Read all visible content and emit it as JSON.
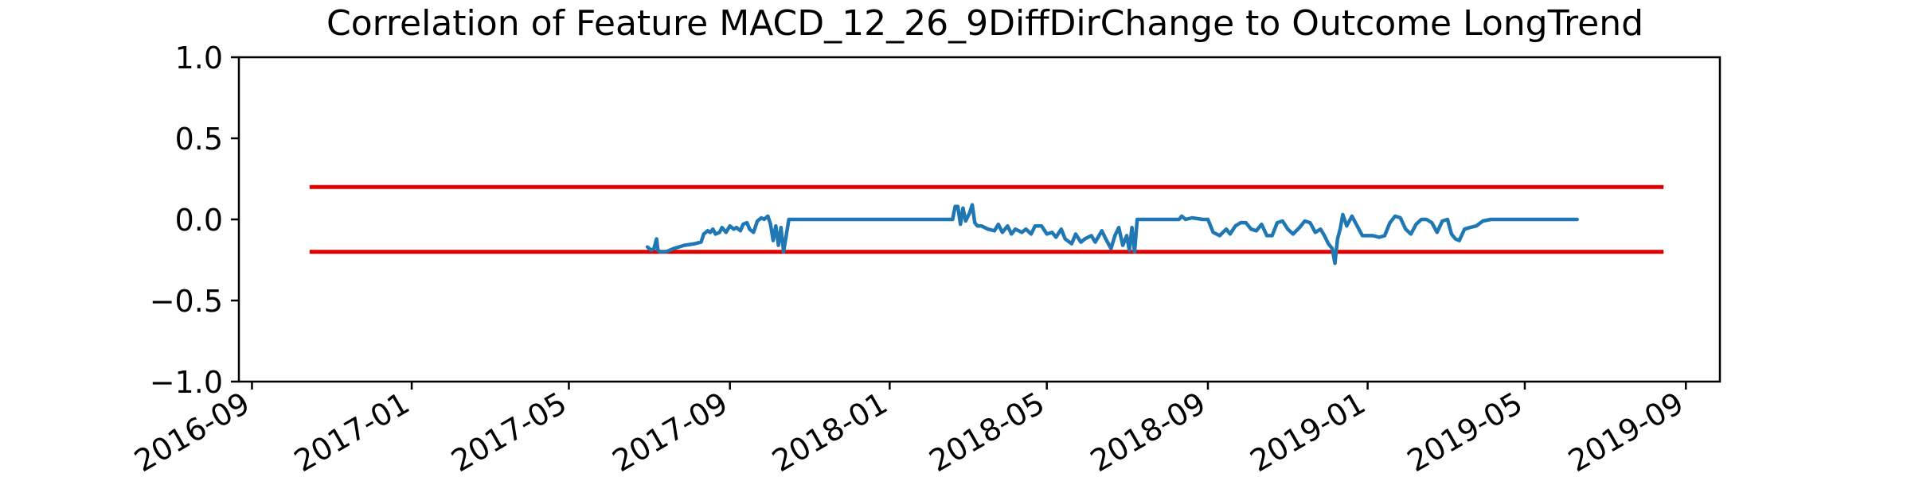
{
  "chart_data": {
    "type": "line",
    "title": "Correlation of Feature MACD_12_26_9DiffDirChange to Outcome LongTrend",
    "xlabel": "",
    "ylabel": "",
    "x_axis_type": "date",
    "xlim": [
      "2016-08-22",
      "2019-09-27"
    ],
    "ylim": [
      -1.0,
      1.0
    ],
    "grid": false,
    "legend": "none",
    "y_ticks": [
      1.0,
      0.5,
      0.0,
      -0.5,
      -1.0
    ],
    "y_tick_labels": [
      "1.0",
      "0.5",
      "0.0",
      "−0.5",
      "−1.0"
    ],
    "x_ticks": [
      "2016-09-01",
      "2017-01-01",
      "2017-05-01",
      "2017-09-01",
      "2018-01-01",
      "2018-05-01",
      "2018-09-01",
      "2019-01-01",
      "2019-05-01",
      "2019-09-01"
    ],
    "x_tick_labels": [
      "2016-09",
      "2017-01",
      "2017-05",
      "2017-09",
      "2018-01",
      "2018-05",
      "2018-09",
      "2019-01",
      "2019-05",
      "2019-09"
    ],
    "colors": {
      "series": "#1f77b4",
      "threshold": "#e00000"
    },
    "thresholds": [
      {
        "x": [
          "2016-10-15",
          "2019-08-15"
        ],
        "y": 0.2
      },
      {
        "x": [
          "2016-10-15",
          "2019-08-15"
        ],
        "y": -0.2
      }
    ],
    "series": [
      {
        "x": [
          "2017-06-30",
          "2017-07-03",
          "2017-07-05",
          "2017-07-07",
          "2017-07-08",
          "2017-07-10",
          "2017-07-14",
          "2017-07-20",
          "2017-07-28",
          "2017-08-05",
          "2017-08-10",
          "2017-08-12",
          "2017-08-15",
          "2017-08-17",
          "2017-08-19",
          "2017-08-21",
          "2017-08-24",
          "2017-08-26",
          "2017-08-29",
          "2017-09-01",
          "2017-09-04",
          "2017-09-06",
          "2017-09-09",
          "2017-09-11",
          "2017-09-14",
          "2017-09-16",
          "2017-09-19",
          "2017-09-22",
          "2017-09-25",
          "2017-09-27",
          "2017-09-30",
          "2017-10-02",
          "2017-10-04",
          "2017-10-06",
          "2017-10-08",
          "2017-10-10",
          "2017-10-12",
          "2017-10-14",
          "2017-10-16",
          "2017-10-18",
          "2017-10-20",
          "2018-02-18",
          "2018-02-20",
          "2018-02-22",
          "2018-02-24",
          "2018-02-26",
          "2018-02-28",
          "2018-03-03",
          "2018-03-05",
          "2018-03-07",
          "2018-03-09",
          "2018-03-12",
          "2018-03-17",
          "2018-03-22",
          "2018-03-25",
          "2018-03-28",
          "2018-04-01",
          "2018-04-04",
          "2018-04-07",
          "2018-04-12",
          "2018-04-15",
          "2018-04-19",
          "2018-04-22",
          "2018-04-27",
          "2018-05-01",
          "2018-05-05",
          "2018-05-08",
          "2018-05-12",
          "2018-05-15",
          "2018-05-20",
          "2018-05-23",
          "2018-05-27",
          "2018-05-30",
          "2018-06-04",
          "2018-06-07",
          "2018-06-12",
          "2018-06-15",
          "2018-06-19",
          "2018-06-22",
          "2018-06-25",
          "2018-06-28",
          "2018-07-01",
          "2018-07-03",
          "2018-07-05",
          "2018-07-07",
          "2018-07-09",
          "2018-07-11",
          "2018-07-13",
          "2018-08-10",
          "2018-08-12",
          "2018-08-15",
          "2018-08-20",
          "2018-08-28",
          "2018-09-01",
          "2018-09-05",
          "2018-09-10",
          "2018-09-15",
          "2018-09-18",
          "2018-09-22",
          "2018-09-26",
          "2018-09-30",
          "2018-10-04",
          "2018-10-08",
          "2018-10-12",
          "2018-10-16",
          "2018-10-20",
          "2018-10-24",
          "2018-10-28",
          "2018-11-01",
          "2018-11-05",
          "2018-11-10",
          "2018-11-14",
          "2018-11-18",
          "2018-11-22",
          "2018-11-26",
          "2018-11-29",
          "2018-12-02",
          "2018-12-05",
          "2018-12-07",
          "2018-12-09",
          "2018-12-11",
          "2018-12-13",
          "2018-12-16",
          "2018-12-20",
          "2018-12-28",
          "2019-01-05",
          "2019-01-10",
          "2019-01-14",
          "2019-01-18",
          "2019-01-22",
          "2019-01-26",
          "2019-01-30",
          "2019-02-03",
          "2019-02-07",
          "2019-02-11",
          "2019-02-15",
          "2019-02-19",
          "2019-02-23",
          "2019-02-27",
          "2019-03-03",
          "2019-03-06",
          "2019-03-09",
          "2019-03-12",
          "2019-03-16",
          "2019-03-20",
          "2019-03-25",
          "2019-03-30",
          "2019-04-05",
          "2019-04-15",
          "2019-04-30",
          "2019-05-15",
          "2019-06-01",
          "2019-06-10"
        ],
        "values": [
          -0.17,
          -0.19,
          -0.18,
          -0.12,
          -0.19,
          -0.2,
          -0.2,
          -0.18,
          -0.16,
          -0.15,
          -0.14,
          -0.09,
          -0.07,
          -0.08,
          -0.06,
          -0.09,
          -0.08,
          -0.05,
          -0.08,
          -0.04,
          -0.06,
          -0.05,
          -0.07,
          -0.03,
          -0.02,
          -0.06,
          -0.08,
          -0.01,
          0.01,
          0.0,
          0.02,
          -0.03,
          -0.13,
          -0.04,
          -0.16,
          -0.05,
          -0.2,
          -0.1,
          0.0,
          0.0,
          0.0,
          0.0,
          0.08,
          0.08,
          -0.03,
          0.07,
          -0.01,
          0.04,
          0.09,
          -0.02,
          -0.04,
          -0.04,
          -0.06,
          -0.07,
          -0.03,
          -0.08,
          -0.04,
          -0.09,
          -0.06,
          -0.08,
          -0.06,
          -0.09,
          -0.04,
          -0.04,
          -0.09,
          -0.08,
          -0.11,
          -0.06,
          -0.12,
          -0.15,
          -0.09,
          -0.14,
          -0.12,
          -0.1,
          -0.14,
          -0.07,
          -0.12,
          -0.18,
          -0.1,
          -0.05,
          -0.16,
          -0.1,
          -0.19,
          -0.05,
          -0.2,
          0.0,
          0.0,
          0.0,
          0.0,
          0.02,
          0.0,
          0.01,
          0.0,
          0.0,
          -0.08,
          -0.1,
          -0.06,
          -0.09,
          -0.04,
          -0.02,
          -0.02,
          -0.06,
          -0.07,
          -0.03,
          -0.1,
          -0.1,
          -0.02,
          -0.01,
          -0.06,
          -0.09,
          -0.05,
          -0.01,
          -0.02,
          -0.08,
          -0.06,
          -0.1,
          -0.15,
          -0.18,
          -0.27,
          -0.12,
          -0.06,
          0.03,
          -0.04,
          0.02,
          -0.1,
          -0.1,
          -0.11,
          -0.1,
          -0.02,
          0.02,
          0.01,
          -0.06,
          -0.09,
          -0.03,
          0.0,
          0.0,
          -0.02,
          -0.08,
          -0.01,
          0.0,
          -0.09,
          -0.12,
          -0.13,
          -0.06,
          -0.05,
          -0.04,
          -0.01,
          0.0,
          0.0,
          0.0,
          0.0,
          0.0,
          0.0
        ]
      }
    ]
  }
}
